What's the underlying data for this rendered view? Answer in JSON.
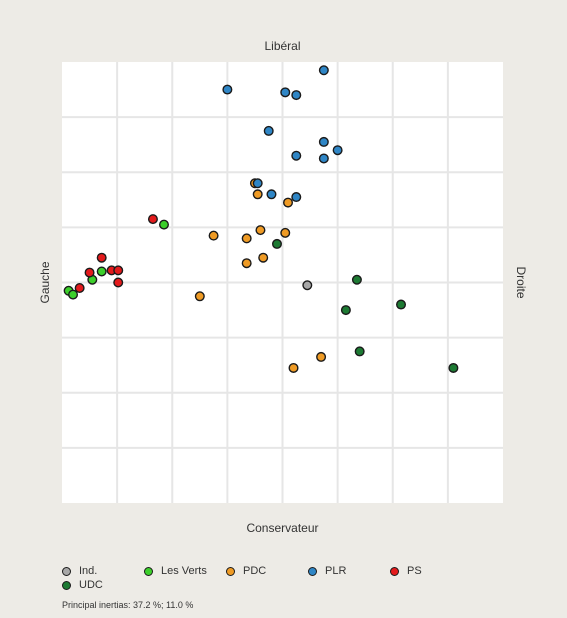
{
  "chart_data": {
    "type": "scatter",
    "title": "",
    "axes": {
      "top": "Libéral",
      "bottom": "Conservateur",
      "left": "Gauche",
      "right": "Droite"
    },
    "xlim": [
      0,
      8
    ],
    "ylim": [
      0,
      8
    ],
    "grid": true,
    "legend_position": "bottom",
    "series": [
      {
        "name": "Ind.",
        "color": "#a7a7a7",
        "points": [
          [
            4.45,
            3.95
          ]
        ]
      },
      {
        "name": "Les Verts",
        "color": "#3ccf2b",
        "points": [
          [
            1.85,
            5.05
          ],
          [
            0.72,
            4.2
          ],
          [
            0.55,
            4.05
          ],
          [
            0.12,
            3.85
          ],
          [
            0.2,
            3.78
          ]
        ]
      },
      {
        "name": "PDC",
        "color": "#ef9b25",
        "points": [
          [
            3.5,
            5.8
          ],
          [
            3.55,
            5.6
          ],
          [
            4.1,
            5.45
          ],
          [
            2.75,
            4.85
          ],
          [
            3.35,
            4.8
          ],
          [
            3.6,
            4.95
          ],
          [
            4.05,
            4.9
          ],
          [
            3.35,
            4.35
          ],
          [
            3.65,
            4.45
          ],
          [
            2.5,
            3.75
          ],
          [
            4.7,
            2.65
          ],
          [
            4.2,
            2.45
          ]
        ]
      },
      {
        "name": "PLR",
        "color": "#2f86c6",
        "points": [
          [
            4.75,
            7.85
          ],
          [
            3.0,
            7.5
          ],
          [
            4.05,
            7.45
          ],
          [
            4.25,
            7.4
          ],
          [
            3.75,
            6.75
          ],
          [
            4.75,
            6.55
          ],
          [
            5.0,
            6.4
          ],
          [
            4.25,
            6.3
          ],
          [
            4.75,
            6.25
          ],
          [
            3.55,
            5.8
          ],
          [
            3.8,
            5.6
          ],
          [
            4.25,
            5.55
          ]
        ]
      },
      {
        "name": "PS",
        "color": "#e31a1c",
        "points": [
          [
            1.65,
            5.15
          ],
          [
            0.72,
            4.45
          ],
          [
            0.9,
            4.22
          ],
          [
            1.02,
            4.22
          ],
          [
            0.5,
            4.18
          ],
          [
            1.02,
            4.0
          ],
          [
            0.32,
            3.9
          ]
        ]
      },
      {
        "name": "UDC",
        "color": "#1d7a33",
        "points": [
          [
            3.9,
            4.7
          ],
          [
            5.35,
            4.05
          ],
          [
            6.15,
            3.6
          ],
          [
            5.15,
            3.5
          ],
          [
            5.4,
            2.75
          ],
          [
            7.1,
            2.45
          ]
        ]
      }
    ],
    "legend_order": [
      "Ind.",
      "Les Verts",
      "PDC",
      "PLR",
      "PS",
      "UDC"
    ],
    "footnote": "Principal inertias: 37.2 %; 11.0 %"
  }
}
